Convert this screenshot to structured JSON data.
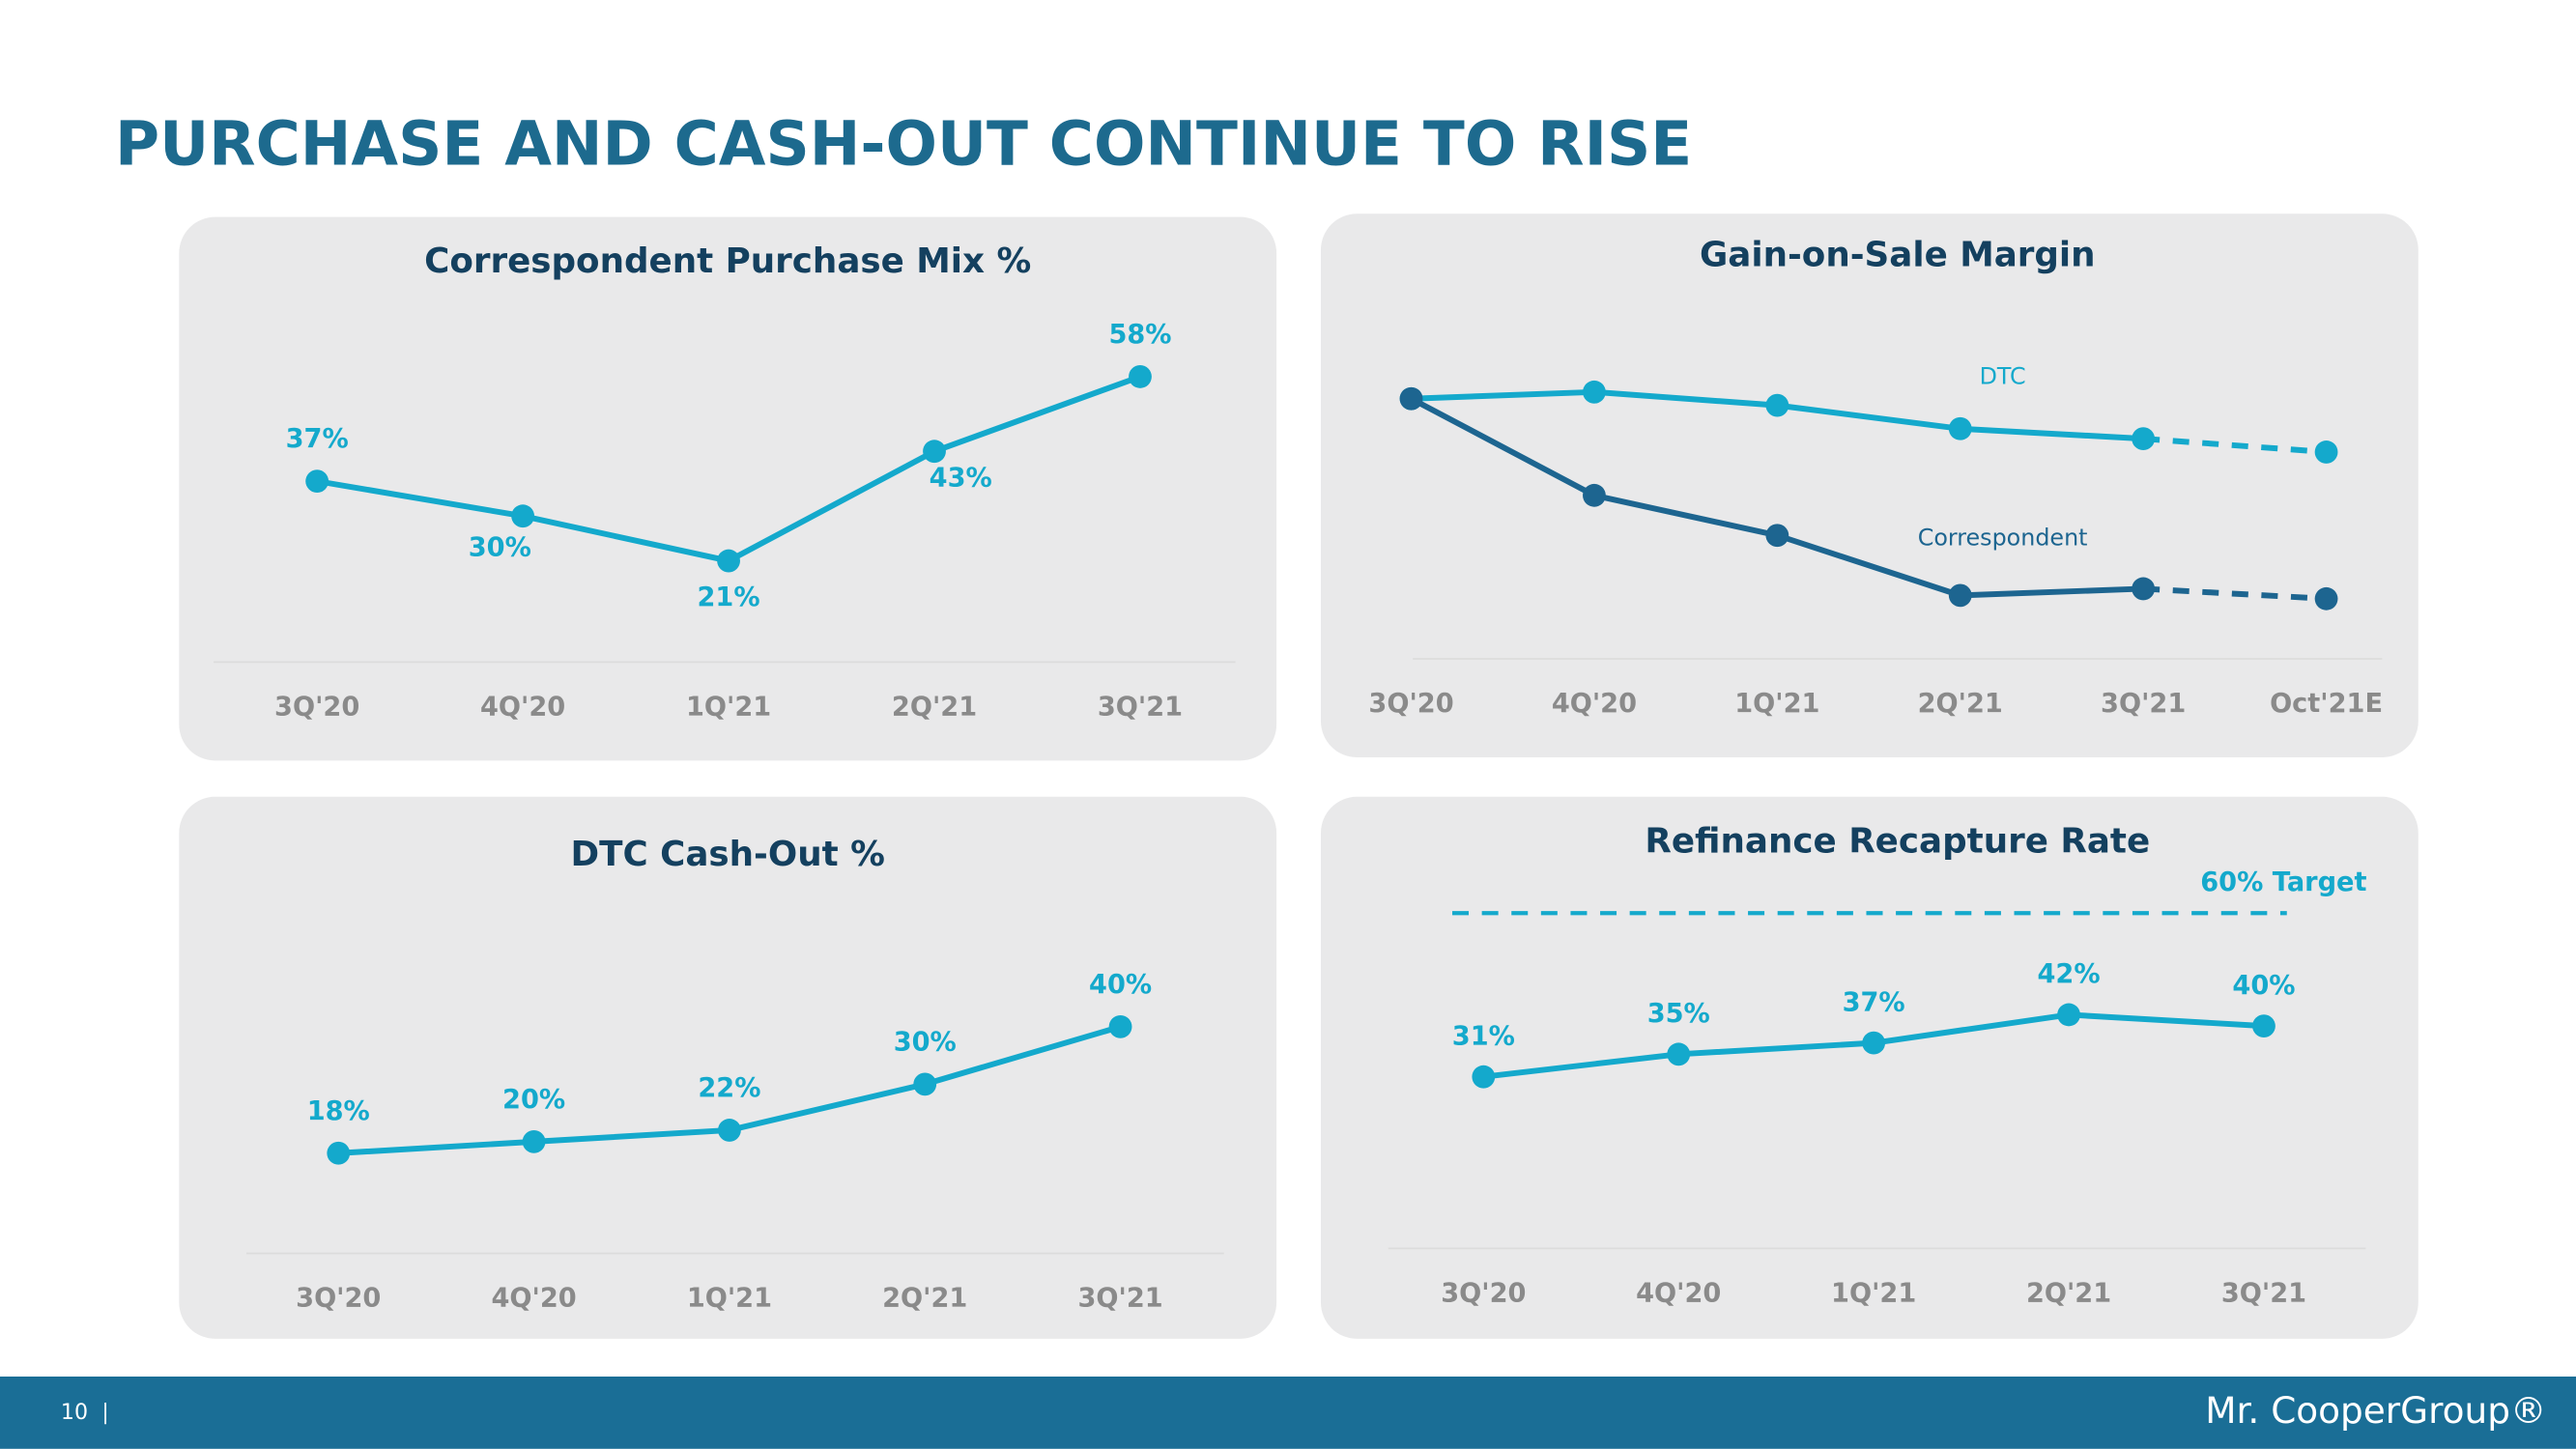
{
  "title": "PURCHASE AND CASH-OUT CONTINUE TO RISE",
  "chart_data": [
    {
      "type": "line",
      "title": "Correspondent Purchase Mix %",
      "categories": [
        "3Q'20",
        "4Q'20",
        "1Q'21",
        "2Q'21",
        "3Q'21"
      ],
      "values": [
        37,
        30,
        21,
        43,
        58
      ],
      "value_labels": [
        "37%",
        "30%",
        "21%",
        "43%",
        "58%"
      ],
      "color": "#14a9cc",
      "ylim": [
        0,
        65
      ]
    },
    {
      "type": "line",
      "title": "Gain-on-Sale Margin",
      "categories": [
        "3Q'20",
        "4Q'20",
        "1Q'21",
        "2Q'21",
        "3Q'21",
        "Oct'21E"
      ],
      "series": [
        {
          "name": "DTC",
          "color": "#14a9cc",
          "values": [
            79,
            81,
            77,
            70,
            67,
            63
          ]
        },
        {
          "name": "Correspondent",
          "color": "#1d6590",
          "values": [
            79,
            50,
            38,
            20,
            22,
            19
          ]
        }
      ],
      "ylim": [
        0,
        100
      ],
      "dash_last_segment": true
    },
    {
      "type": "line",
      "title": "DTC Cash-Out %",
      "categories": [
        "3Q'20",
        "4Q'20",
        "1Q'21",
        "2Q'21",
        "3Q'21"
      ],
      "values": [
        18,
        20,
        22,
        30,
        40
      ],
      "value_labels": [
        "18%",
        "20%",
        "22%",
        "30%",
        "40%"
      ],
      "color": "#14a9cc",
      "ylim": [
        0,
        60
      ]
    },
    {
      "type": "line",
      "title": "Refinance Recapture Rate",
      "categories": [
        "3Q'20",
        "4Q'20",
        "1Q'21",
        "2Q'21",
        "3Q'21"
      ],
      "values": [
        31,
        35,
        37,
        42,
        40
      ],
      "value_labels": [
        "31%",
        "35%",
        "37%",
        "42%",
        "40%"
      ],
      "color": "#14a9cc",
      "ylim": [
        0,
        70
      ],
      "target": {
        "value": 60,
        "label": "60% Target"
      }
    }
  ],
  "footer": {
    "page": "10",
    "logo": "Mr. CooperGroup®"
  }
}
